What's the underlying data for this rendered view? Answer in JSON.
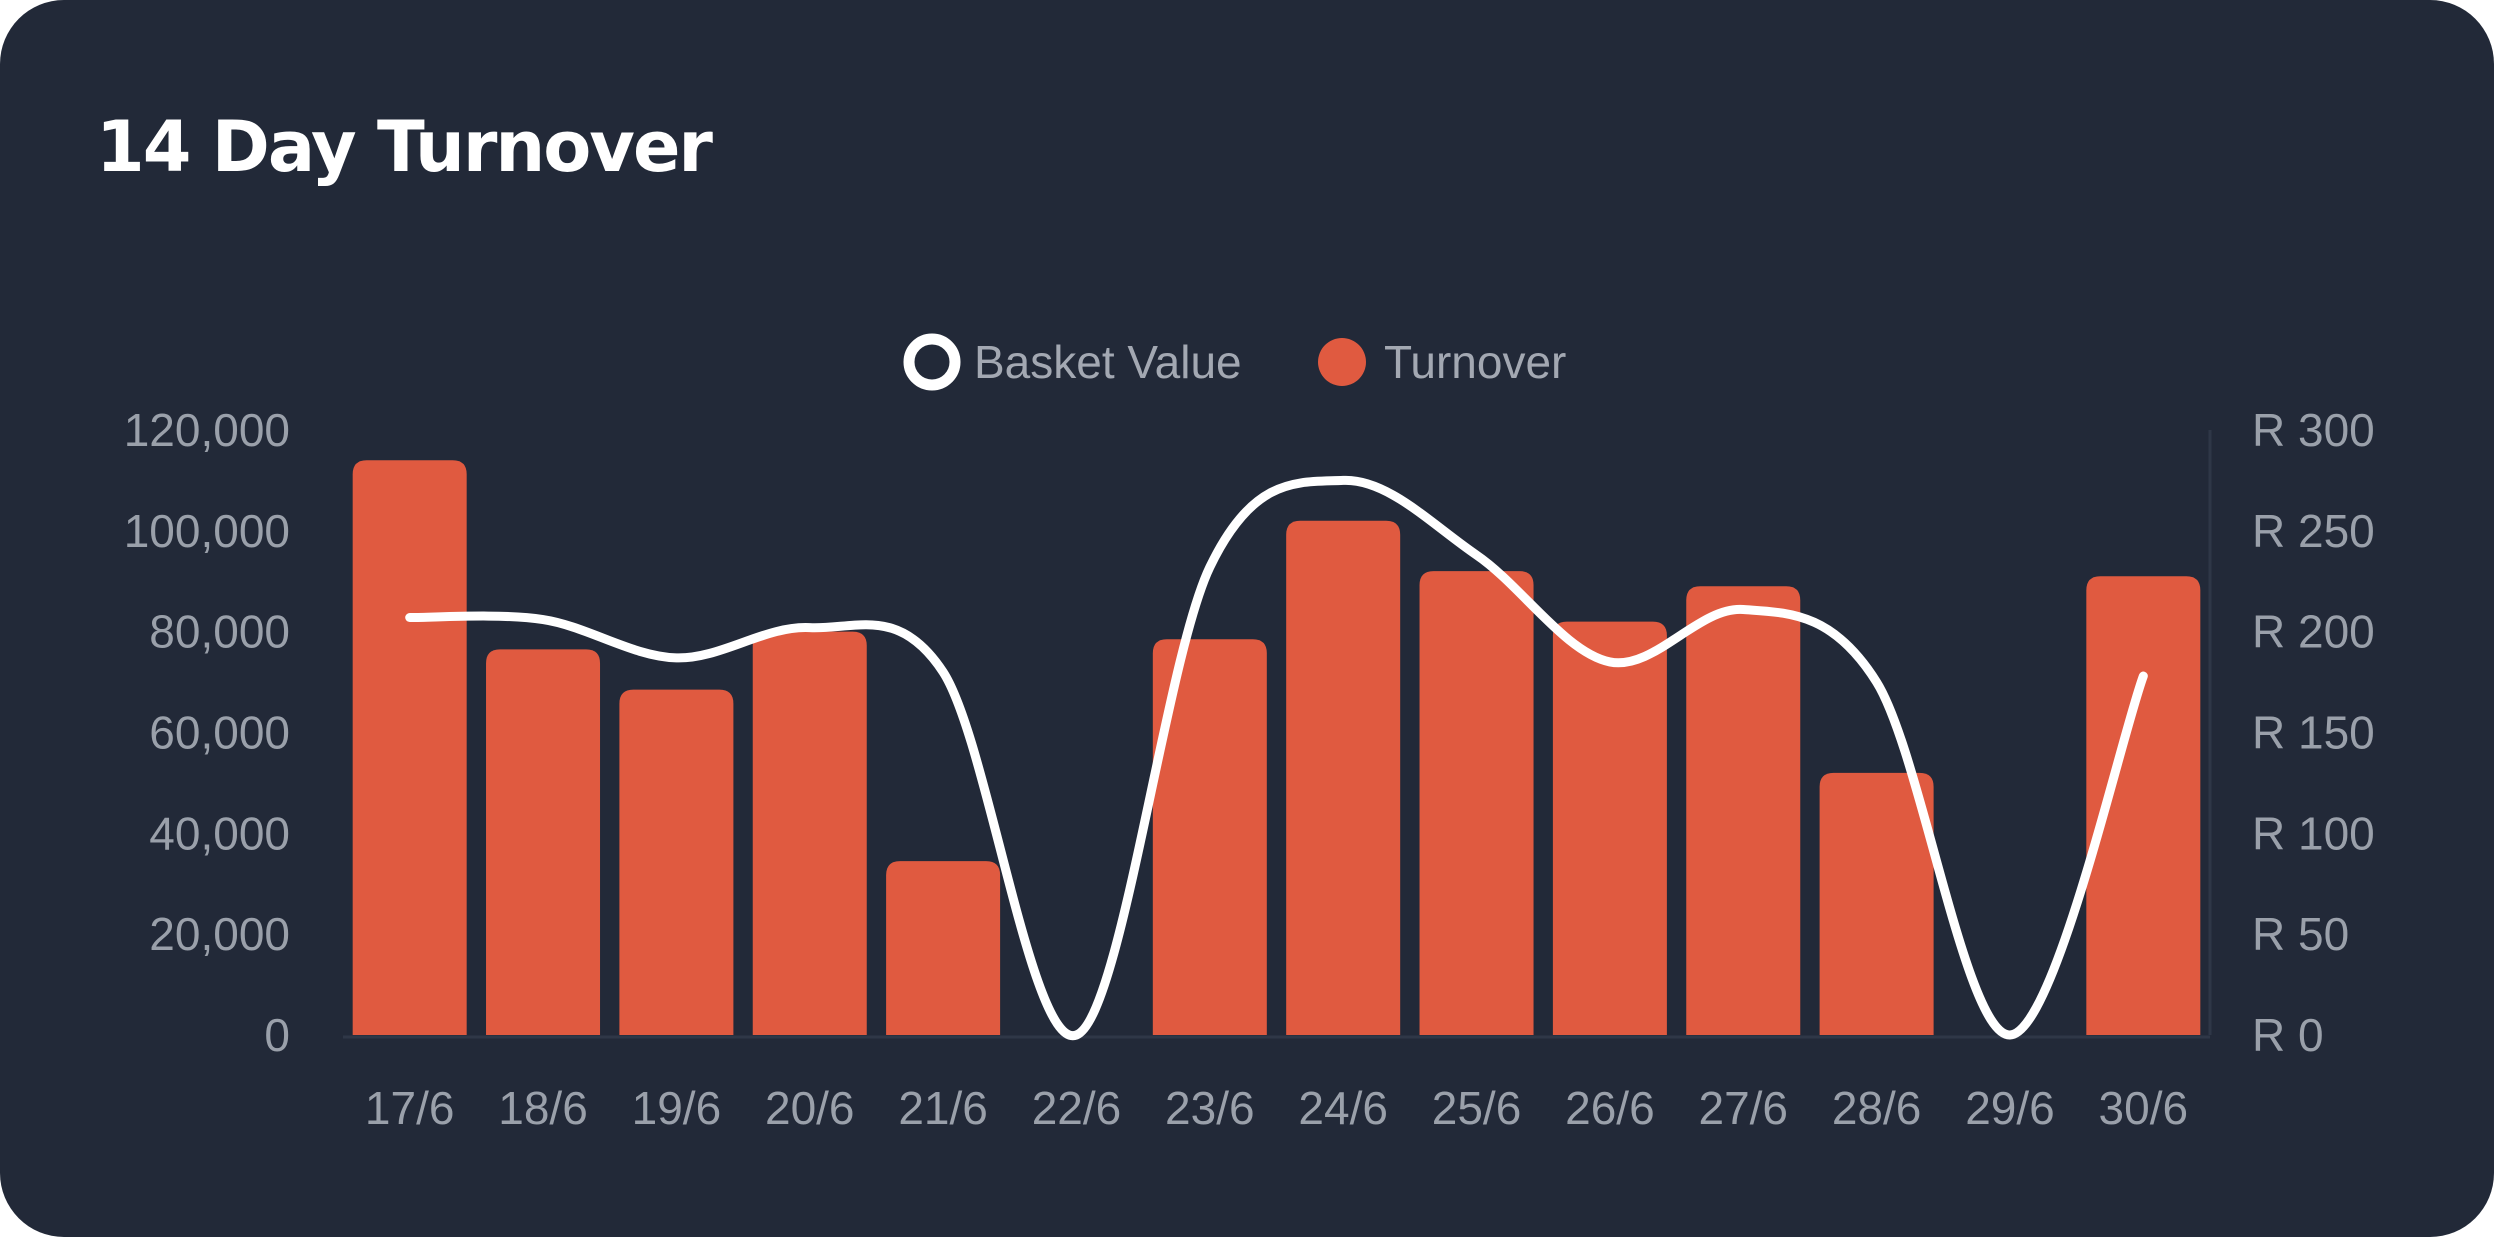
{
  "card": {
    "title": "14 Day Turnover"
  },
  "chart_data": {
    "type": "bar",
    "title": "14 Day Turnover",
    "categories": [
      "17/6",
      "18/6",
      "19/6",
      "20/6",
      "21/6",
      "22/6",
      "23/6",
      "24/6",
      "25/6",
      "26/6",
      "27/6",
      "28/6",
      "29/6",
      "30/6"
    ],
    "legend": {
      "position": "top-center",
      "entries": [
        "Basket Value",
        "Turnover"
      ]
    },
    "series": [
      {
        "name": "Turnover",
        "type": "bar",
        "axis": "left",
        "color": "#e05a40",
        "values": [
          114000,
          76500,
          68500,
          80000,
          34500,
          0,
          78500,
          102000,
          92000,
          82000,
          89000,
          52000,
          0,
          91000
        ]
      },
      {
        "name": "Basket Value",
        "type": "line",
        "smooth": true,
        "axis": "right",
        "color": "#ffffff",
        "values": [
          207,
          206,
          187,
          202,
          180,
          0,
          232,
          275,
          238,
          185,
          211,
          175,
          0,
          178
        ]
      }
    ],
    "y_left": {
      "ylim": [
        0,
        120000
      ],
      "ticks": [
        "120,000",
        "100,000",
        "80,000",
        "60,000",
        "40,000",
        "20,000",
        "0"
      ],
      "tick_values": [
        120000,
        100000,
        80000,
        60000,
        40000,
        20000,
        0
      ]
    },
    "y_right": {
      "ylim": [
        0,
        300
      ],
      "ticks": [
        "R 300",
        "R 250",
        "R 200",
        "R 150",
        "R 100",
        "R 50",
        "R 0"
      ],
      "tick_values": [
        300,
        250,
        200,
        150,
        100,
        50,
        0
      ]
    },
    "grid": false
  }
}
